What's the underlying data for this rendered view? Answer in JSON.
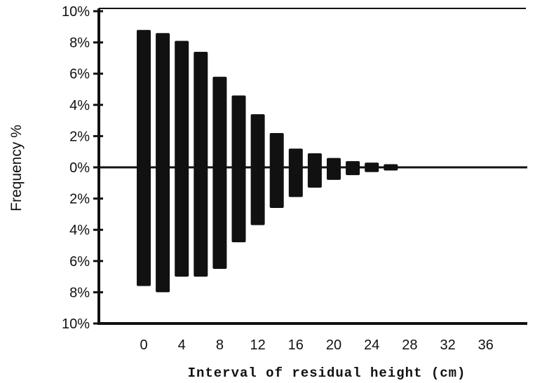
{
  "chart_data": {
    "type": "bar",
    "xlabel": "Interval of residual height (cm)",
    "ylabel": "Frequency %",
    "x_tick_labels": [
      "0",
      "4",
      "8",
      "12",
      "16",
      "20",
      "24",
      "28",
      "32",
      "36"
    ],
    "y_tick_labels": [
      "10%",
      "8%",
      "6%",
      "4%",
      "2%",
      "0%",
      "2%",
      "4%",
      "6%",
      "8%",
      "10%"
    ],
    "ylim": [
      -10,
      10
    ],
    "grid": false,
    "legend": "none",
    "categories": [
      0,
      2,
      4,
      6,
      8,
      10,
      12,
      14,
      16,
      18,
      20,
      22,
      24,
      26
    ],
    "series": [
      {
        "values": [
          8.8,
          8.6,
          8.1,
          7.4,
          5.8,
          4.6,
          3.4,
          2.2,
          1.2,
          0.9,
          0.6,
          0.4,
          0.3,
          0.2
        ]
      },
      {
        "values": [
          -7.6,
          -8.0,
          -7.0,
          -7.0,
          -6.5,
          -4.8,
          -3.7,
          -2.6,
          -1.9,
          -1.3,
          -0.8,
          -0.5,
          -0.3,
          -0.2
        ]
      }
    ],
    "bar_color": "#111111"
  }
}
